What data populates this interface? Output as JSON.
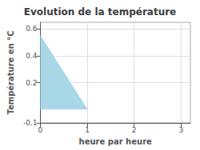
{
  "chart_data": {
    "type": "area",
    "title": "Evolution de la température",
    "xlabel": "heure par heure",
    "ylabel": "Température en °C",
    "x": [
      0,
      1
    ],
    "values": [
      0.55,
      0.0
    ],
    "color": "#a8d8e8",
    "xlim": [
      0,
      3.2
    ],
    "xticks": [
      0,
      1,
      2,
      3
    ],
    "ylim": [
      -0.1,
      0.65
    ],
    "yticks": [
      -0.1,
      0.2,
      0.4,
      0.6
    ],
    "grid": true
  }
}
